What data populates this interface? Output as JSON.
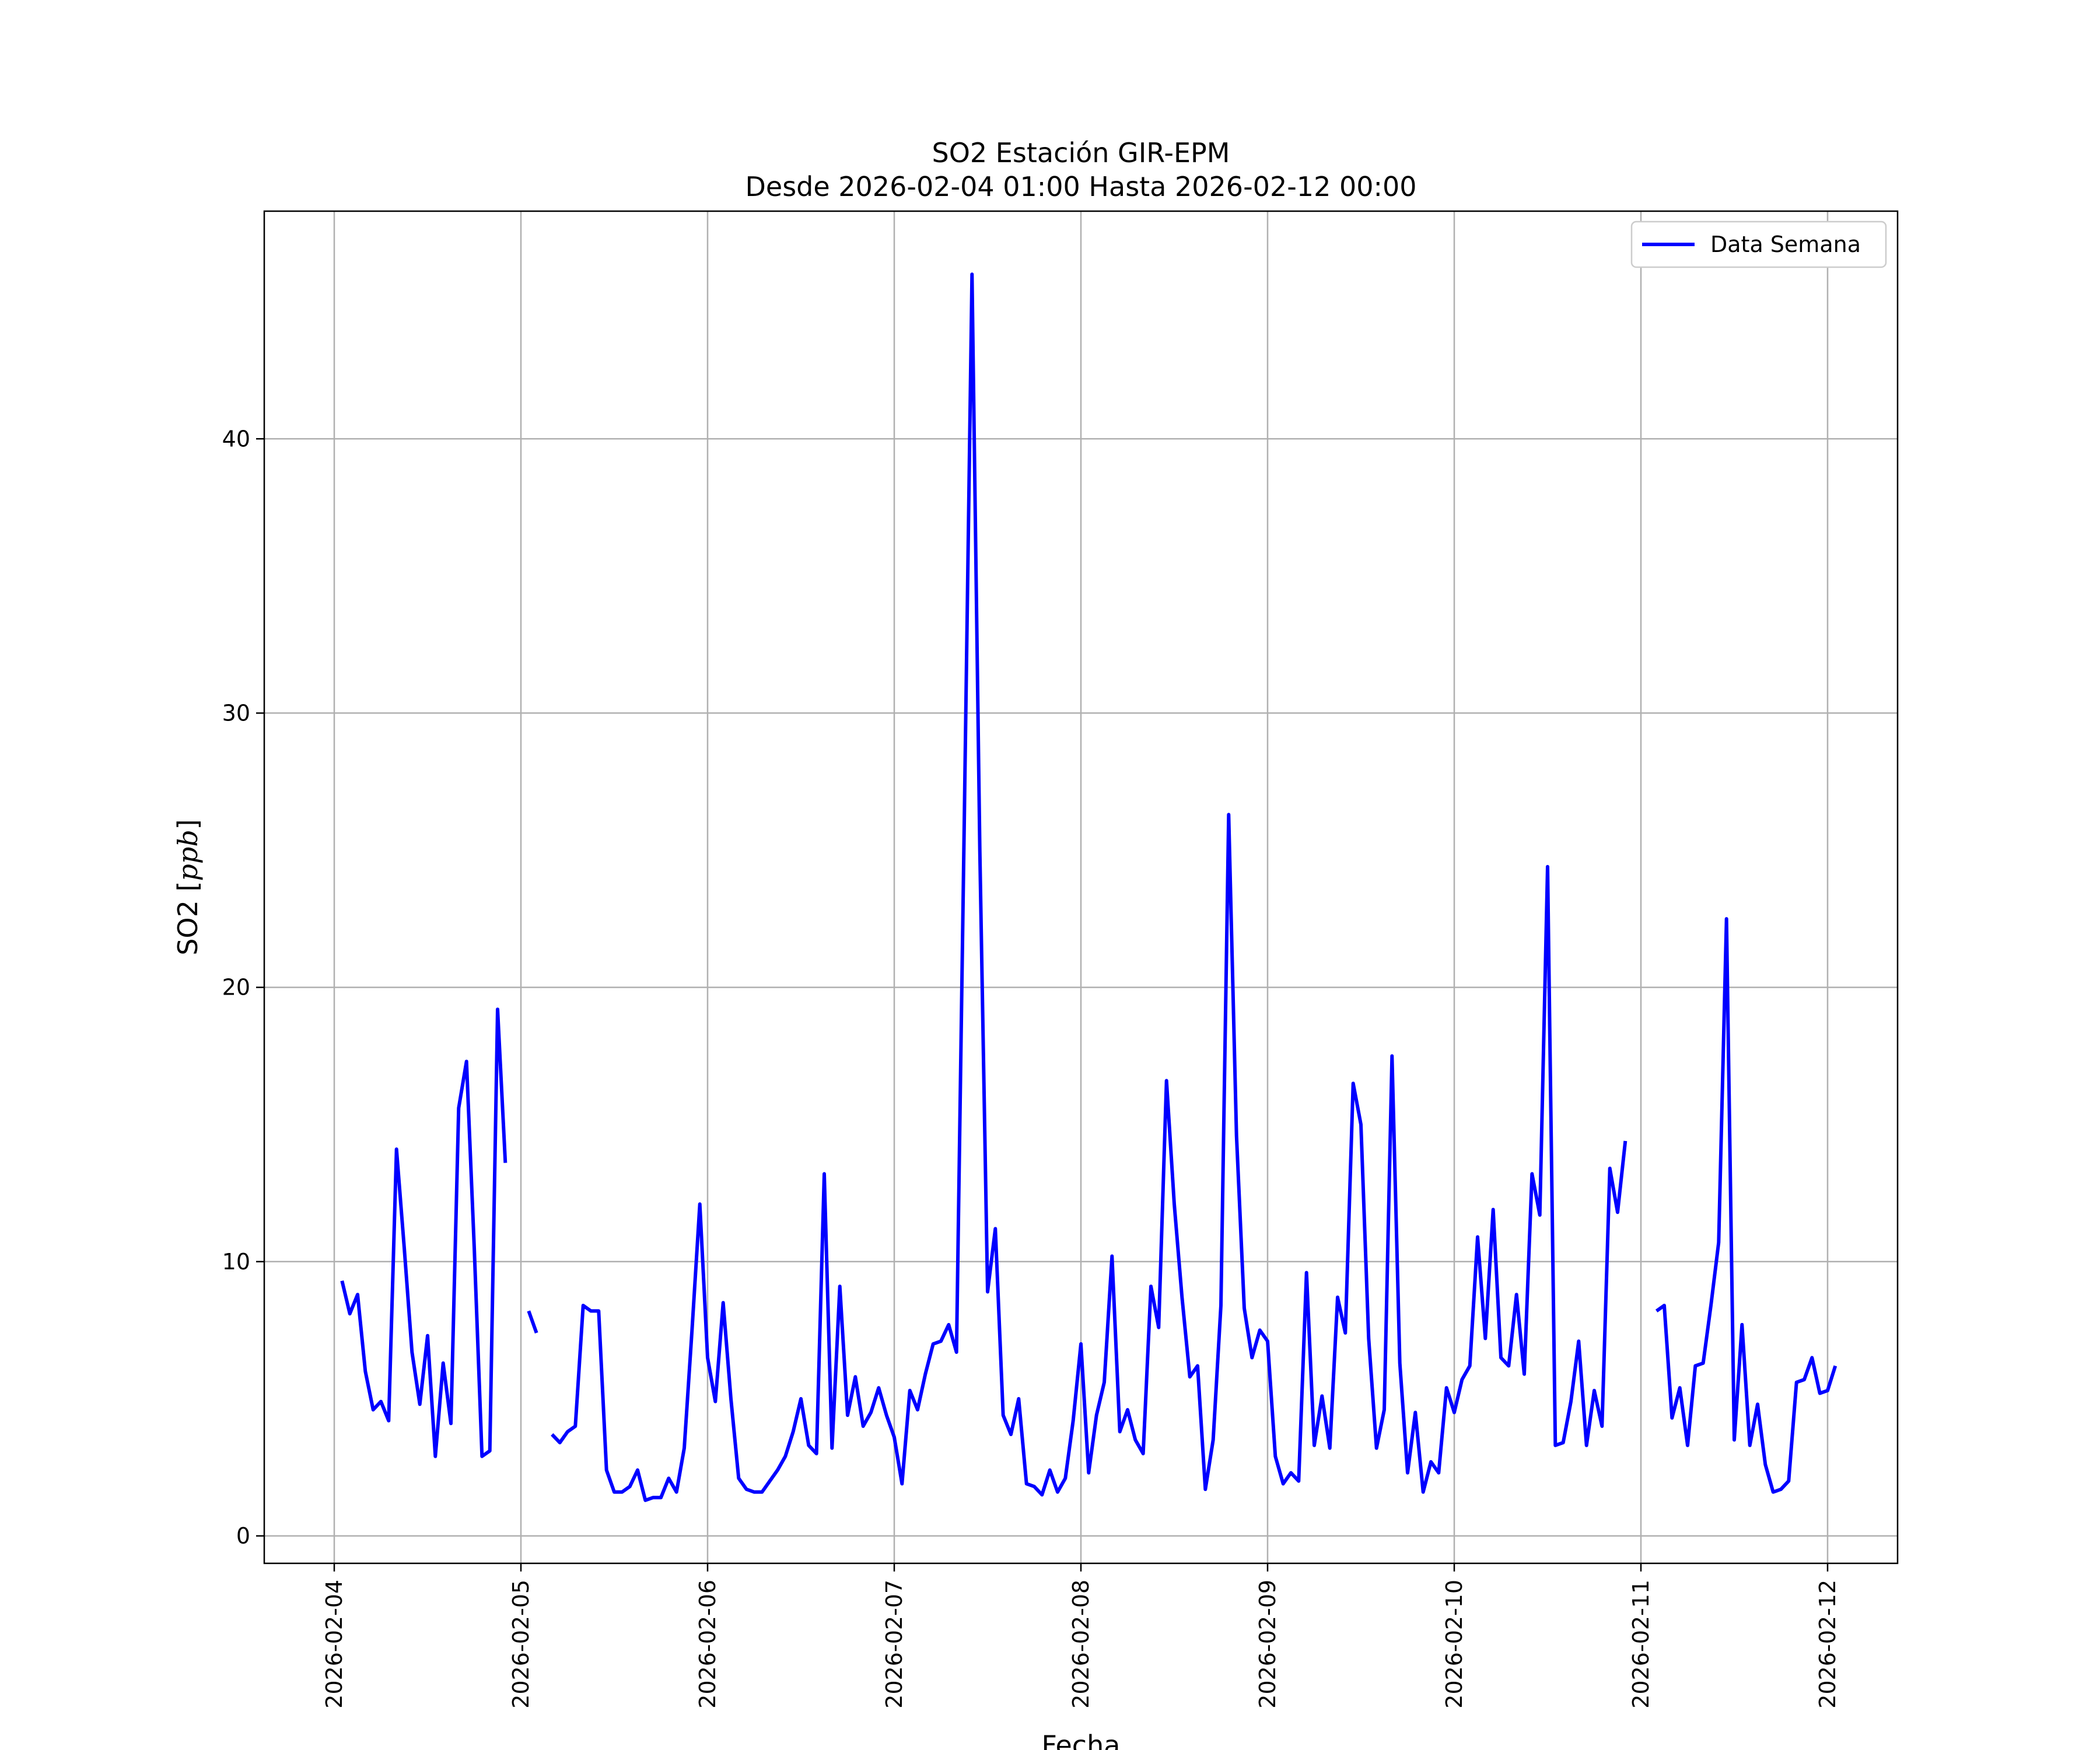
{
  "chart_data": {
    "type": "line",
    "title_lines": [
      "SO2 Estación GIR-EPM",
      "Desde 2026-02-04 01:00 Hasta 2026-02-12 00:00"
    ],
    "xlabel": "Fecha",
    "ylabel": "SO2 [ppb]",
    "ylabel_prefix": "SO2 [",
    "ylabel_unit": "ppb",
    "ylabel_suffix": "]",
    "x_start": "2026-02-04 00:00",
    "x_end": "2026-02-12 00:00",
    "xlim": [
      "2026-02-03 15:00",
      "2026-02-12 09:00"
    ],
    "ylim": [
      -1,
      48.3
    ],
    "x_ticks": [
      "2026-02-04",
      "2026-02-05",
      "2026-02-06",
      "2026-02-07",
      "2026-02-08",
      "2026-02-09",
      "2026-02-10",
      "2026-02-11",
      "2026-02-12"
    ],
    "y_ticks": [
      0,
      10,
      20,
      30,
      40
    ],
    "y_tick_labels": [
      "0",
      "10",
      "20",
      "30",
      "40"
    ],
    "grid": true,
    "legend_position": "top-right",
    "series": [
      {
        "name": "Data Semana",
        "color": "#0000ff",
        "note_hourly_from": "2026-02-04 01:00",
        "values": [
          9.3,
          8.1,
          8.8,
          6.0,
          4.6,
          4.9,
          4.2,
          14.1,
          10.5,
          6.7,
          4.8,
          7.3,
          2.9,
          6.3,
          4.1,
          15.6,
          17.3,
          10.5,
          2.9,
          3.1,
          19.2,
          13.6,
          null,
          null,
          8.2,
          7.4,
          null,
          3.7,
          3.4,
          3.8,
          4.0,
          8.4,
          8.2,
          8.2,
          2.4,
          1.6,
          1.6,
          1.8,
          2.4,
          1.3,
          1.4,
          1.4,
          2.1,
          1.6,
          3.2,
          7.5,
          12.1,
          6.5,
          4.9,
          8.5,
          5.0,
          2.1,
          1.7,
          1.6,
          1.6,
          2.0,
          2.4,
          2.9,
          3.8,
          5.0,
          3.3,
          3.0,
          13.2,
          3.2,
          9.1,
          4.4,
          5.8,
          4.0,
          4.5,
          5.4,
          4.4,
          3.6,
          1.9,
          5.3,
          4.6,
          5.9,
          7.0,
          7.1,
          7.7,
          6.7,
          26.0,
          46.0,
          25.0,
          8.9,
          11.2,
          4.4,
          3.7,
          5.0,
          1.9,
          1.8,
          1.5,
          2.4,
          1.6,
          2.1,
          4.2,
          7.0,
          2.3,
          4.4,
          5.6,
          10.2,
          3.8,
          4.6,
          3.5,
          3.0,
          9.1,
          7.6,
          16.6,
          12.1,
          8.7,
          5.8,
          6.2,
          1.7,
          3.5,
          8.4,
          26.3,
          14.6,
          8.3,
          6.5,
          7.5,
          7.1,
          2.9,
          1.9,
          2.3,
          2.0,
          9.6,
          3.3,
          5.1,
          3.2,
          8.7,
          7.4,
          16.5,
          15.0,
          7.2,
          3.2,
          4.6,
          17.5,
          6.3,
          2.3,
          4.5,
          1.6,
          2.7,
          2.3,
          5.4,
          4.5,
          5.7,
          6.2,
          10.9,
          7.2,
          11.9,
          6.5,
          6.2,
          8.8,
          5.9,
          13.2,
          11.7,
          24.4,
          3.3,
          3.4,
          4.9,
          7.1,
          3.3,
          5.3,
          4.0,
          13.4,
          11.8,
          14.4,
          null,
          null,
          null,
          8.2,
          8.4,
          4.3,
          5.4,
          3.3,
          6.2,
          6.3,
          8.4,
          10.7,
          22.5,
          3.5,
          7.7,
          3.3,
          4.8,
          2.6,
          1.6,
          1.7,
          2.0,
          5.6,
          5.7,
          6.5,
          5.2,
          5.3,
          6.2
        ]
      }
    ]
  }
}
